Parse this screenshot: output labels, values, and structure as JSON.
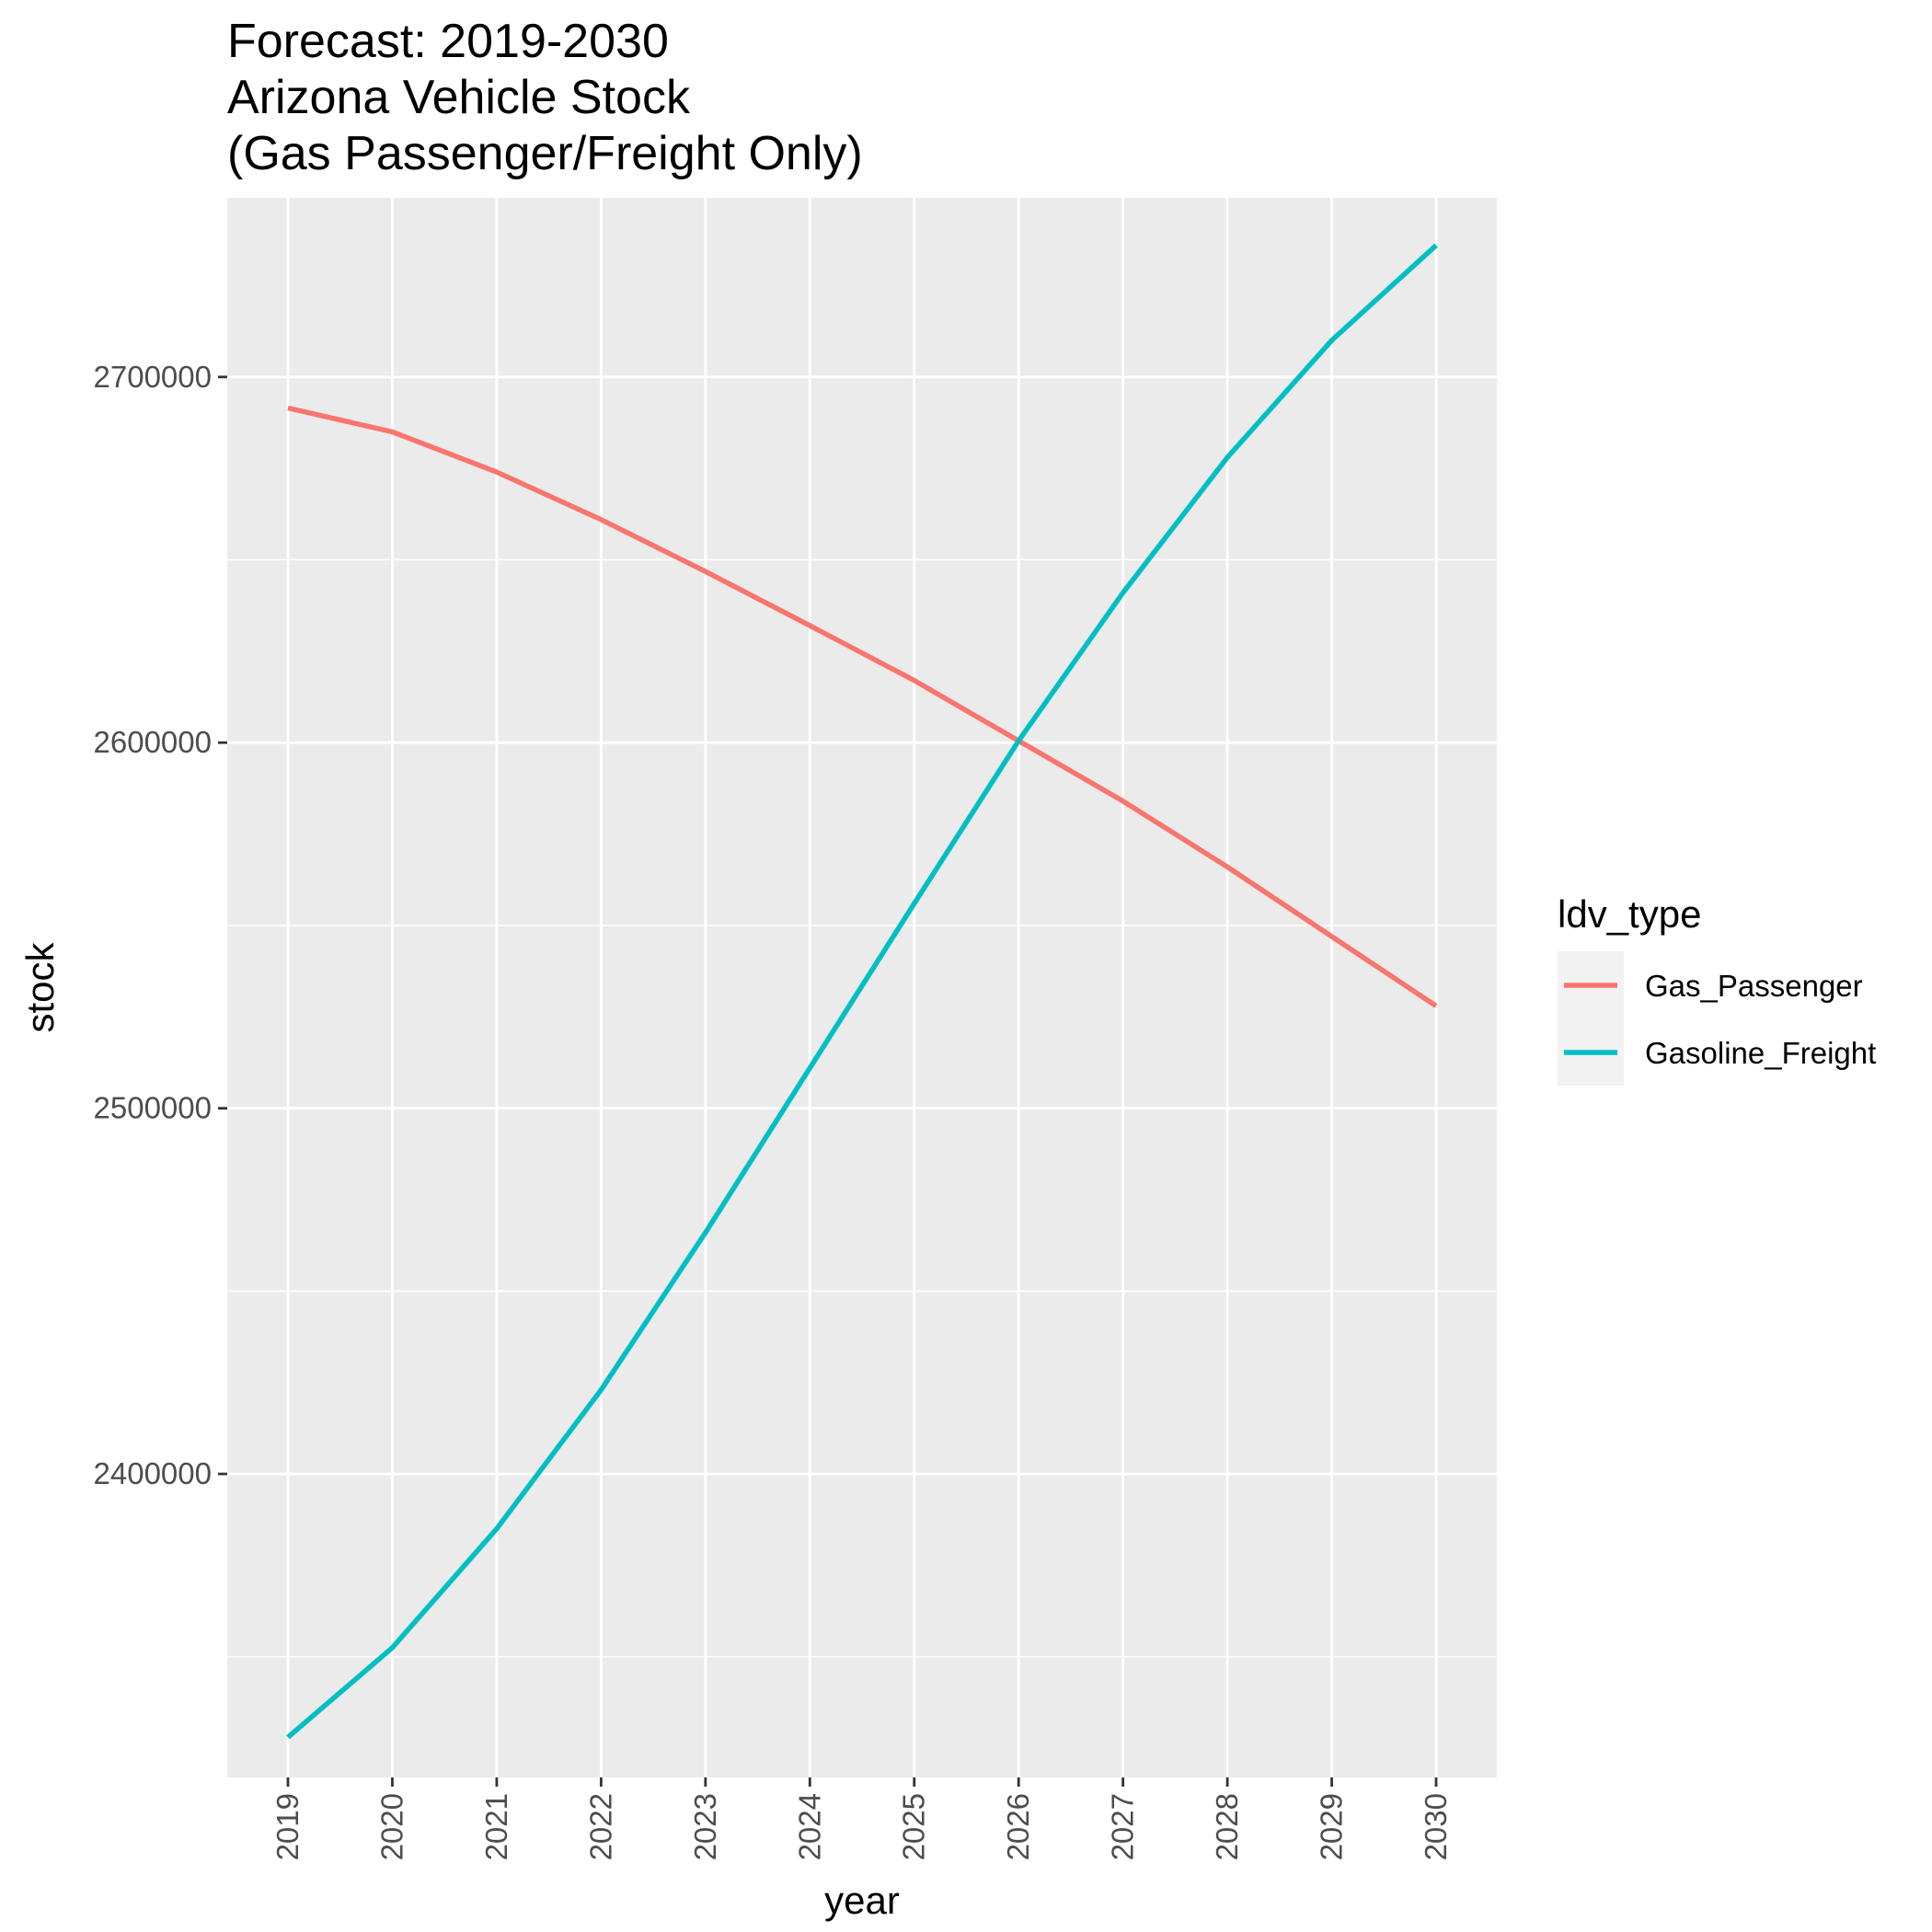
{
  "chart_data": {
    "type": "line",
    "title_lines": [
      "Forecast: 2019-2030",
      "Arizona Vehicle Stock",
      "(Gas Passenger/Freight Only)"
    ],
    "xlabel": "year",
    "ylabel": "stock",
    "x": [
      2019,
      2020,
      2021,
      2022,
      2023,
      2024,
      2025,
      2026,
      2027,
      2028,
      2029,
      2030
    ],
    "x_tick_labels": [
      "2019",
      "2020",
      "2021",
      "2022",
      "2023",
      "2024",
      "2025",
      "2026",
      "2027",
      "2028",
      "2029",
      "2030"
    ],
    "y_ticks": [
      2400000,
      2500000,
      2600000,
      2700000
    ],
    "y_tick_labels": [
      "2400000",
      "2500000",
      "2600000",
      "2700000"
    ],
    "ylim": [
      2317000,
      2749000
    ],
    "grid": true,
    "legend": {
      "title": "ldv_type",
      "position": "right"
    },
    "series": [
      {
        "name": "Gas_Passenger",
        "color": "#F8766D",
        "values": [
          2691500,
          2685000,
          2674000,
          2661000,
          2646800,
          2632000,
          2617000,
          2600500,
          2584000,
          2566000,
          2547000,
          2528000
        ]
      },
      {
        "name": "Gasoline_Freight",
        "color": "#00BFC4",
        "values": [
          2328000,
          2352500,
          2385000,
          2423000,
          2466000,
          2511000,
          2556000,
          2600500,
          2641000,
          2678000,
          2710000,
          2736000
        ]
      }
    ]
  }
}
